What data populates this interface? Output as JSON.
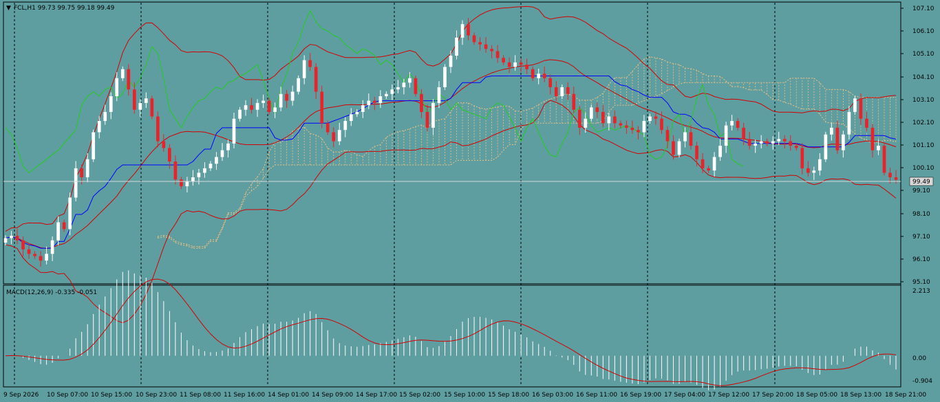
{
  "header": {
    "symbol_line": "FCL,H1  99.73 99.75 99.18 99.49",
    "macd_line": "MACD(12,26,9) -0.335 -0.051"
  },
  "price_axis": {
    "labels": [
      "107.10",
      "106.10",
      "105.10",
      "104.10",
      "103.10",
      "102.10",
      "101.10",
      "100.10",
      "99.10",
      "98.10",
      "97.10",
      "96.10",
      "95.10"
    ],
    "current_price": "99.49"
  },
  "macd_axis": {
    "labels": [
      "2.213",
      "0.00",
      "-0.904"
    ]
  },
  "time_axis": {
    "labels": [
      "9 Sep 2026",
      "10 Sep 07:00",
      "10 Sep 15:00",
      "10 Sep 23:00",
      "11 Sep 08:00",
      "11 Sep 16:00",
      "14 Sep 01:00",
      "14 Sep 09:00",
      "14 Sep 17:00",
      "15 Sep 02:00",
      "15 Sep 10:00",
      "15 Sep 18:00",
      "16 Sep 03:00",
      "16 Sep 11:00",
      "16 Sep 19:00",
      "17 Sep 04:00",
      "17 Sep 12:00",
      "17 Sep 20:00",
      "18 Sep 05:00",
      "18 Sep 13:00",
      "18 Sep 21:00"
    ]
  },
  "colors": {
    "background": "#5f9ea0",
    "bull_candle": "#ffffff",
    "bear_candle": "#e8232a",
    "bollinger": "#d40000",
    "kijun": "#0000ff",
    "chikou": "#22cc22",
    "kumo": "#f0c080",
    "macd_hist": "#ffffff",
    "macd_signal": "#d40000",
    "price_line": "#d8d8d8"
  },
  "chart_data": {
    "type": "candlestick",
    "symbol": "FCL",
    "timeframe": "H1",
    "last_bar": {
      "open": 99.73,
      "high": 99.75,
      "low": 99.18,
      "close": 99.49
    },
    "price_range": [
      94.9,
      107.35
    ],
    "closes": [
      96.9,
      97.0,
      96.8,
      96.4,
      96.2,
      96.1,
      95.9,
      96.2,
      96.8,
      97.6,
      97.3,
      98.7,
      100.0,
      99.6,
      100.4,
      101.6,
      102.1,
      102.5,
      103.2,
      104.0,
      104.4,
      103.5,
      102.6,
      102.9,
      103.1,
      102.3,
      101.2,
      100.9,
      100.3,
      99.5,
      99.2,
      99.4,
      99.6,
      99.8,
      100.0,
      100.2,
      100.5,
      100.8,
      101.1,
      102.2,
      102.6,
      102.8,
      102.6,
      102.9,
      103.0,
      102.5,
      102.7,
      103.3,
      103.0,
      103.4,
      104.0,
      104.8,
      104.5,
      103.4,
      102.0,
      101.6,
      101.2,
      101.7,
      102.1,
      102.4,
      102.5,
      102.8,
      103.0,
      102.9,
      103.2,
      103.3,
      103.5,
      103.6,
      103.8,
      104.0,
      103.3,
      102.5,
      101.8,
      102.9,
      103.6,
      104.5,
      105.0,
      105.8,
      106.4,
      105.9,
      105.6,
      105.5,
      105.3,
      105.2,
      104.9,
      104.7,
      104.5,
      104.7,
      104.6,
      104.4,
      104.0,
      104.2,
      104.0,
      103.6,
      103.2,
      103.6,
      103.3,
      102.6,
      101.8,
      102.2,
      102.7,
      102.5,
      102.0,
      102.3,
      102.0,
      101.9,
      101.8,
      101.7,
      101.6,
      102.1,
      102.3,
      102.2,
      101.7,
      101.2,
      100.6,
      101.2,
      101.6,
      101.0,
      100.4,
      100.0,
      99.9,
      100.5,
      101.0,
      101.9,
      102.1,
      101.8,
      101.3,
      101.0,
      101.1,
      101.2,
      101.1,
      101.2,
      101.3,
      101.2,
      101.0,
      100.9,
      100.0,
      99.8,
      99.9,
      100.4,
      101.5,
      101.8,
      100.8,
      101.5,
      102.5,
      103.1,
      102.2,
      101.8,
      100.8,
      101.0,
      99.8,
      99.6,
      99.49
    ],
    "macd_hist_range": [
      -0.904,
      2.213
    ]
  }
}
